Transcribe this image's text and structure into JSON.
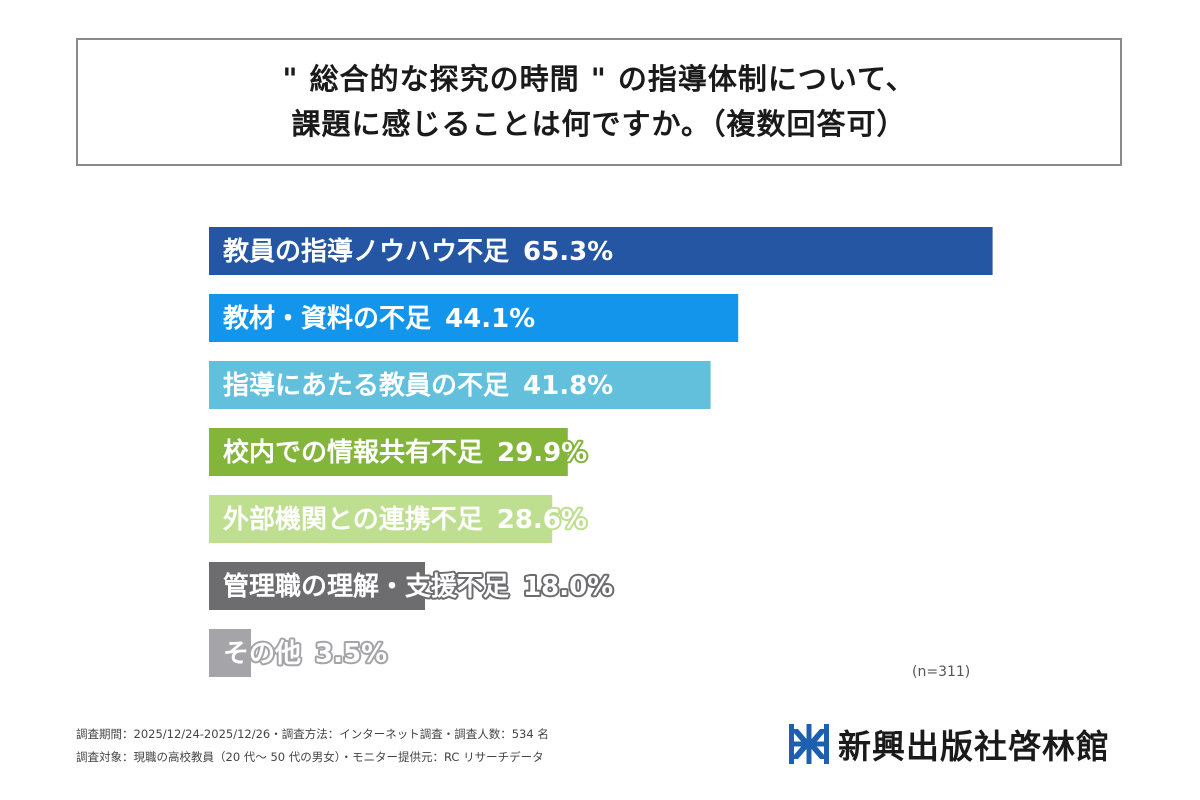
{
  "title": {
    "line1": "\" 総合的な探究の時間 \" の指導体制について、",
    "line2": "課題に感じることは何ですか。（複数回答可）"
  },
  "chart_data": {
    "type": "bar",
    "orientation": "horizontal",
    "xlim": [
      0,
      100
    ],
    "bars": [
      {
        "label": "教員の指導ノウハウ不足",
        "value": 65.3,
        "display": "65.3%",
        "color": "#2456a3"
      },
      {
        "label": "教材・資料の不足",
        "value": 44.1,
        "display": "44.1%",
        "color": "#1495ec"
      },
      {
        "label": "指導にあたる教員の不足",
        "value": 41.8,
        "display": "41.8%",
        "color": "#63c0dd"
      },
      {
        "label": "校内での情報共有不足",
        "value": 29.9,
        "display": "29.9%",
        "color": "#83b53b"
      },
      {
        "label": "外部機関との連携不足",
        "value": 28.6,
        "display": "28.6%",
        "color": "#bddf8f"
      },
      {
        "label": "管理職の理解・支援不足",
        "value": 18.0,
        "display": "18.0%",
        "color": "#6d6d70"
      },
      {
        "label": "その他",
        "value": 3.5,
        "display": "3.5%",
        "color": "#a5a5a9"
      }
    ],
    "sample_note": "(n=311)"
  },
  "footer": {
    "line1": "調査期間：2025/12/24-2025/12/26・調査方法：インターネット調査・調査人数：534 名",
    "line2": "調査対象：現職の高校教員（20 代～ 50 代の男女）・モニター提供元：RC リサーチデータ",
    "logo_text": "新興出版社啓林館",
    "logo_color": "#1f5fb0"
  }
}
